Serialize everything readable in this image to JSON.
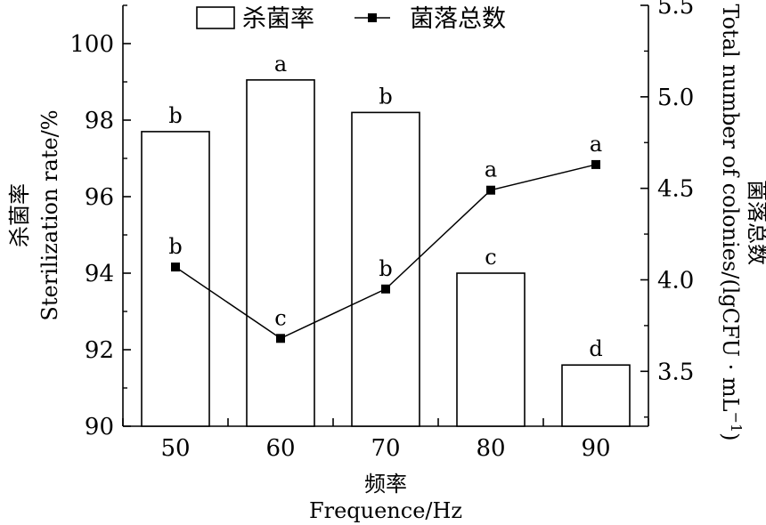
{
  "chart_data": {
    "type": "bar+line",
    "categories": [
      "50",
      "60",
      "70",
      "80",
      "90"
    ],
    "xlabel_cn": "频率",
    "xlabel_en": "Frequence/Hz",
    "left_axis": {
      "label_cn": "杀菌率",
      "label_en": "Sterilization rate/%",
      "ylim": [
        90,
        101
      ],
      "ticks": [
        "90",
        "92",
        "94",
        "96",
        "98",
        "100"
      ]
    },
    "right_axis": {
      "label_cn": "菌落总数",
      "label_en": "Total number of colonies/(lgCFU · mL",
      "label_en_sup": "−1",
      "label_en_close": ")",
      "ylim": [
        3.2,
        5.5
      ],
      "ticks": [
        "3.5",
        "4.0",
        "4.5",
        "5.0",
        "5.5"
      ]
    },
    "bar_series": {
      "name": "杀菌率",
      "values": [
        97.7,
        99.05,
        98.2,
        94.0,
        91.6
      ],
      "significance": [
        "b",
        "a",
        "b",
        "c",
        "d"
      ]
    },
    "line_series": {
      "name": "菌落总数",
      "values": [
        4.07,
        3.68,
        3.95,
        4.49,
        4.63
      ],
      "significance": [
        "b",
        "c",
        "b",
        "a",
        "a"
      ]
    },
    "legend_position": "top"
  }
}
